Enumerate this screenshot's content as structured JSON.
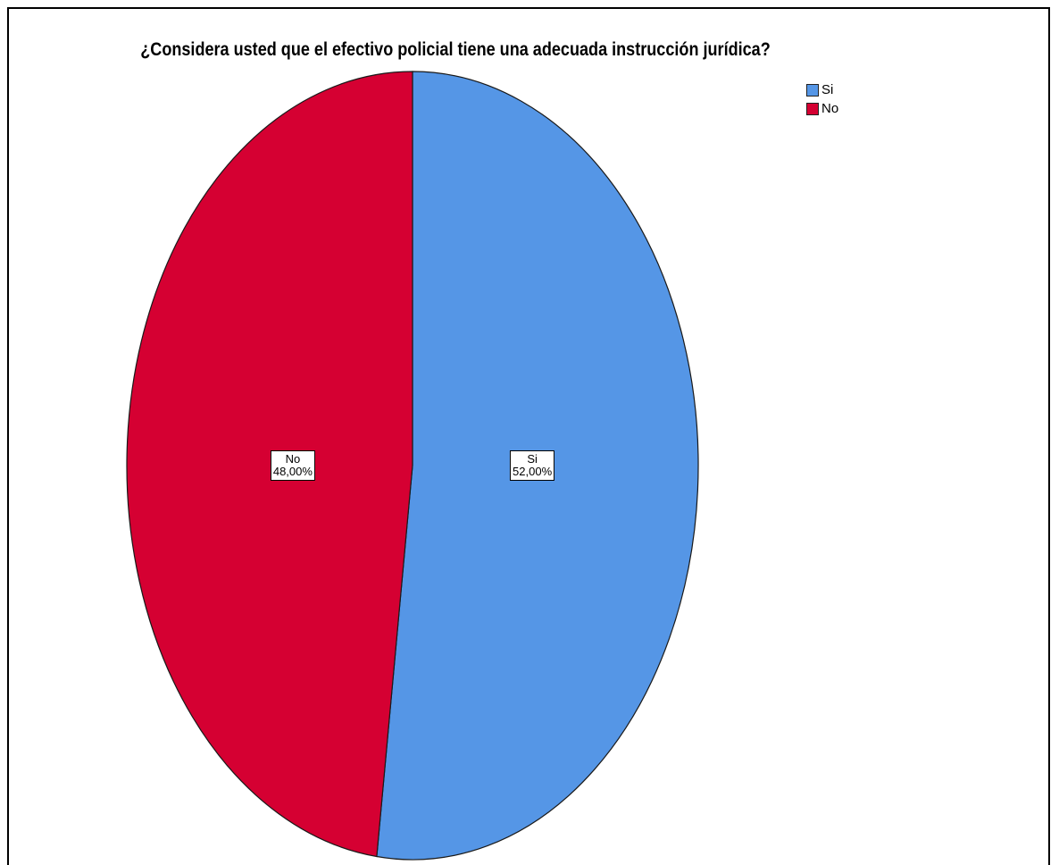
{
  "chart_data": {
    "type": "pie",
    "title": "¿Considera usted que el efectivo policial tiene una adecuada instrucción jurídica?",
    "slices": [
      {
        "name": "Si",
        "value": 52.0,
        "label": "52,00%",
        "color": "#5596e6"
      },
      {
        "name": "No",
        "value": 48.0,
        "label": "48,00%",
        "color": "#d50032"
      }
    ],
    "legend_position": "top-right",
    "start_angle_deg": 0,
    "direction": "clockwise"
  }
}
